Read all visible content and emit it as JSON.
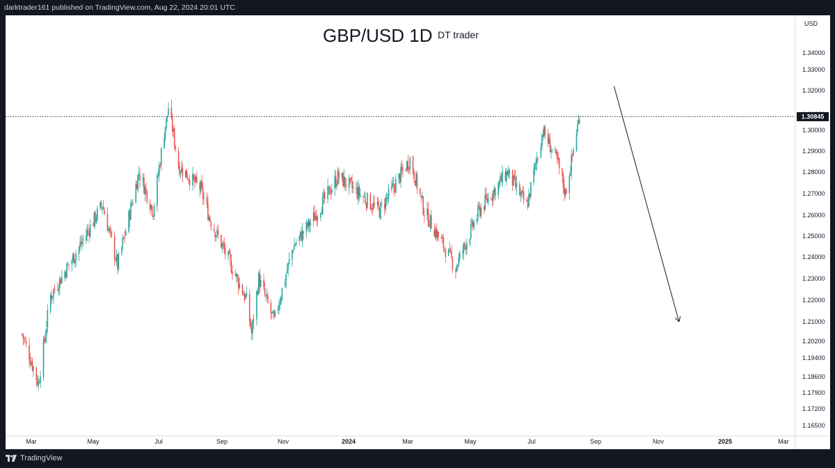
{
  "header": {
    "published_line": "darktrader161 published on TradingView.com, Aug 22, 2024 20:01 UTC"
  },
  "footer": {
    "brand": "TradingView"
  },
  "chart_data": {
    "type": "candlestick",
    "title": "GBP/USD 1D",
    "subtitle": "DT trader",
    "currency_label": "USD",
    "current_price_label": "1.30845",
    "current_price": 1.30845,
    "y_ticks": [
      "1.34000",
      "1.33000",
      "1.32000",
      "1.31000",
      "1.30000",
      "1.29000",
      "1.28000",
      "1.27000",
      "1.26000",
      "1.25000",
      "1.24000",
      "1.23000",
      "1.22000",
      "1.21000",
      "1.20200",
      "1.19400",
      "1.18600",
      "1.17900",
      "1.17200",
      "1.16500"
    ],
    "x_ticks": [
      "Mar",
      "May",
      "Jul",
      "Sep",
      "Nov",
      "2024",
      "Mar",
      "May",
      "Jul",
      "Sep",
      "Nov",
      "2025",
      "Mar"
    ],
    "bold_x_ticks": [
      "2024",
      "2025"
    ],
    "y_range_visible": [
      1.16,
      1.35
    ],
    "close_path": [
      {
        "date": "2023-02-20",
        "close": 1.205
      },
      {
        "date": "2023-03-08",
        "close": 1.183
      },
      {
        "date": "2023-03-20",
        "close": 1.222
      },
      {
        "date": "2023-04-14",
        "close": 1.242
      },
      {
        "date": "2023-05-10",
        "close": 1.265
      },
      {
        "date": "2023-05-25",
        "close": 1.236
      },
      {
        "date": "2023-06-15",
        "close": 1.28
      },
      {
        "date": "2023-06-29",
        "close": 1.262
      },
      {
        "date": "2023-07-14",
        "close": 1.313
      },
      {
        "date": "2023-07-24",
        "close": 1.283
      },
      {
        "date": "2023-08-15",
        "close": 1.272
      },
      {
        "date": "2023-08-24",
        "close": 1.258
      },
      {
        "date": "2023-09-29",
        "close": 1.22
      },
      {
        "date": "2023-10-04",
        "close": 1.205
      },
      {
        "date": "2023-10-11",
        "close": 1.23
      },
      {
        "date": "2023-10-26",
        "close": 1.21
      },
      {
        "date": "2023-11-14",
        "close": 1.245
      },
      {
        "date": "2023-12-06",
        "close": 1.26
      },
      {
        "date": "2023-12-28",
        "close": 1.278
      },
      {
        "date": "2024-01-10",
        "close": 1.273
      },
      {
        "date": "2024-02-07",
        "close": 1.262
      },
      {
        "date": "2024-03-08",
        "close": 1.286
      },
      {
        "date": "2024-03-22",
        "close": 1.262
      },
      {
        "date": "2024-04-22",
        "close": 1.235
      },
      {
        "date": "2024-05-15",
        "close": 1.262
      },
      {
        "date": "2024-06-12",
        "close": 1.28
      },
      {
        "date": "2024-07-01",
        "close": 1.264
      },
      {
        "date": "2024-07-17",
        "close": 1.3
      },
      {
        "date": "2024-07-31",
        "close": 1.285
      },
      {
        "date": "2024-08-08",
        "close": 1.27
      },
      {
        "date": "2024-08-14",
        "close": 1.285
      },
      {
        "date": "2024-08-22",
        "close": 1.30845
      }
    ],
    "annotations": [
      {
        "type": "horizontal-dotted-line",
        "price": 1.30845
      },
      {
        "type": "arrow",
        "from": {
          "date": "2024-09-25",
          "price": 1.322
        },
        "to": {
          "date": "2024-11-28",
          "price": 1.21
        }
      }
    ],
    "colors": {
      "up": "#26a69a",
      "down": "#ef5350",
      "price_tag_bg": "#131722",
      "annotation": "#131722",
      "axis_text": "#131722"
    }
  }
}
